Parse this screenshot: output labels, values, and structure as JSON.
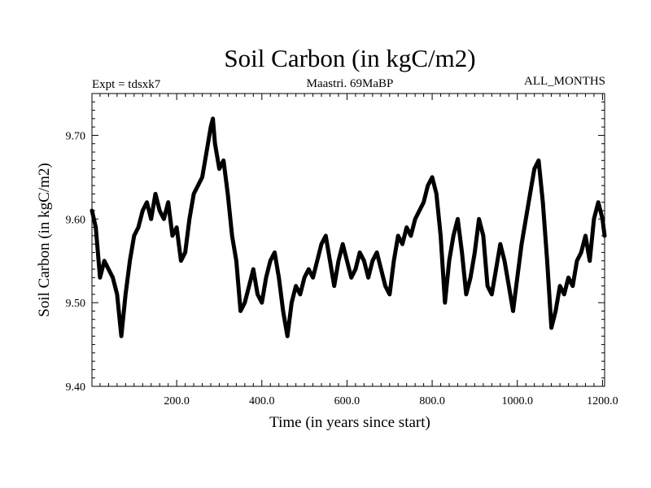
{
  "chart_data": {
    "type": "line",
    "title": "Soil Carbon (in kgC/m2)",
    "subtitle_left": "Expt = tdsxk7",
    "subtitle_center": "Maastri.  69MaBP",
    "subtitle_right": "ALL_MONTHS",
    "xlabel": "Time (in years since start)",
    "ylabel": "Soil Carbon (in kgC/m2)",
    "xlim": [
      1,
      1205
    ],
    "ylim": [
      9.4,
      9.75
    ],
    "xticks": [
      200,
      400,
      600,
      800,
      1000,
      1200
    ],
    "xtick_labels": [
      "200.0",
      "400.0",
      "600.0",
      "800.0",
      "1000.0",
      "1200.0"
    ],
    "yticks": [
      9.4,
      9.5,
      9.6,
      9.7
    ],
    "ytick_labels": [
      "9.40",
      "9.50",
      "9.60",
      "9.70"
    ],
    "line_color": "#000000",
    "series": [
      {
        "name": "Soil Carbon",
        "x": [
          1,
          10,
          20,
          30,
          40,
          50,
          60,
          70,
          80,
          90,
          100,
          110,
          120,
          130,
          140,
          150,
          160,
          170,
          180,
          190,
          200,
          210,
          220,
          230,
          240,
          250,
          260,
          270,
          280,
          285,
          290,
          300,
          310,
          320,
          330,
          340,
          350,
          360,
          370,
          380,
          390,
          400,
          410,
          420,
          430,
          440,
          450,
          460,
          470,
          480,
          490,
          500,
          510,
          520,
          530,
          540,
          550,
          560,
          570,
          580,
          590,
          600,
          610,
          620,
          630,
          640,
          650,
          660,
          670,
          680,
          690,
          700,
          710,
          720,
          730,
          740,
          750,
          760,
          770,
          780,
          790,
          800,
          810,
          820,
          830,
          840,
          850,
          860,
          870,
          880,
          890,
          900,
          910,
          920,
          930,
          940,
          950,
          960,
          970,
          980,
          990,
          1000,
          1010,
          1020,
          1030,
          1040,
          1050,
          1060,
          1070,
          1080,
          1090,
          1100,
          1110,
          1120,
          1130,
          1140,
          1150,
          1160,
          1170,
          1180,
          1190,
          1200,
          1205
        ],
        "values": [
          9.61,
          9.59,
          9.53,
          9.55,
          9.54,
          9.53,
          9.51,
          9.46,
          9.51,
          9.55,
          9.58,
          9.59,
          9.61,
          9.62,
          9.6,
          9.63,
          9.61,
          9.6,
          9.62,
          9.58,
          9.59,
          9.55,
          9.56,
          9.6,
          9.63,
          9.64,
          9.65,
          9.68,
          9.71,
          9.72,
          9.69,
          9.66,
          9.67,
          9.63,
          9.58,
          9.55,
          9.49,
          9.5,
          9.52,
          9.54,
          9.51,
          9.5,
          9.53,
          9.55,
          9.56,
          9.53,
          9.49,
          9.46,
          9.5,
          9.52,
          9.51,
          9.53,
          9.54,
          9.53,
          9.55,
          9.57,
          9.58,
          9.55,
          9.52,
          9.55,
          9.57,
          9.55,
          9.53,
          9.54,
          9.56,
          9.55,
          9.53,
          9.55,
          9.56,
          9.54,
          9.52,
          9.51,
          9.55,
          9.58,
          9.57,
          9.59,
          9.58,
          9.6,
          9.61,
          9.62,
          9.64,
          9.65,
          9.63,
          9.58,
          9.5,
          9.55,
          9.58,
          9.6,
          9.56,
          9.51,
          9.53,
          9.56,
          9.6,
          9.58,
          9.52,
          9.51,
          9.54,
          9.57,
          9.55,
          9.52,
          9.49,
          9.53,
          9.57,
          9.6,
          9.63,
          9.66,
          9.67,
          9.62,
          9.55,
          9.47,
          9.49,
          9.52,
          9.51,
          9.53,
          9.52,
          9.55,
          9.56,
          9.58,
          9.55,
          9.6,
          9.62,
          9.6,
          9.58
        ]
      }
    ]
  }
}
